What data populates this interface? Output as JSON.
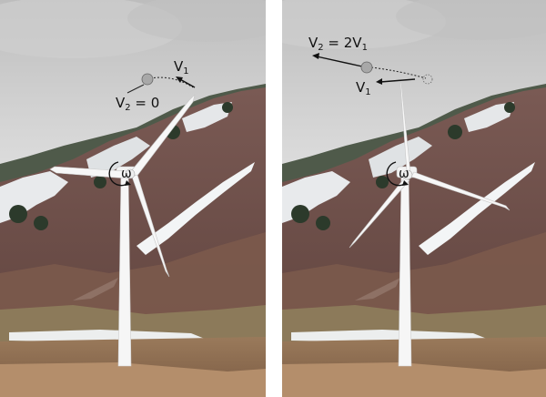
{
  "panels": [
    {
      "id": "left",
      "labels": {
        "v1": "V",
        "v1_sub": "1",
        "v2": "V",
        "v2_sub": "2",
        "v2_rest": " = 0",
        "omega": "ω"
      }
    },
    {
      "id": "right",
      "labels": {
        "v2": "V",
        "v2_sub": "2",
        "v2_rest": " = 2V",
        "v2_rest_sub": "1",
        "v1": "V",
        "v1_sub": "1",
        "omega": "ω"
      }
    }
  ],
  "colors": {
    "sky": "#c9c9c9",
    "cloud": "#e9e9e9",
    "snow": "#f1f3f4",
    "mountain_dark": "#6b4b47",
    "mountain_mid": "#8c6a62",
    "mountain_light": "#a68579",
    "trees": "#2e3a2a",
    "meadow": "#8f7a5a",
    "ground": "#a07a5a",
    "tower": "#f5f5f5",
    "ball": "#a9a9a9"
  },
  "icons": [
    "curved-rotation-arrow-icon",
    "velocity-arrow-icon",
    "ball-icon"
  ]
}
